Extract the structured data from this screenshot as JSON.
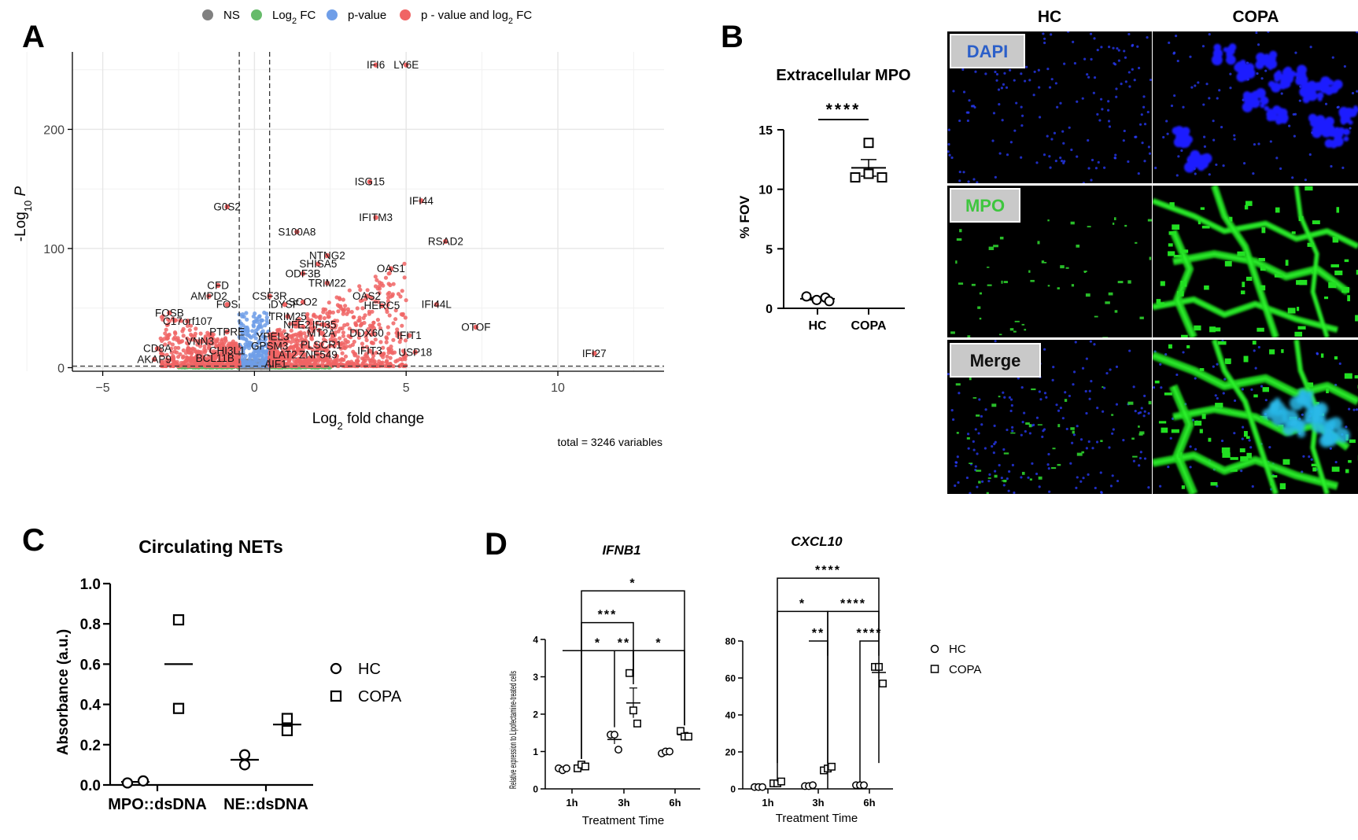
{
  "panel_letters": [
    "A",
    "B",
    "C",
    "D"
  ],
  "chart_data": [
    {
      "id": "A",
      "type": "scatter",
      "title": "",
      "xlabel": "Log2 fold change",
      "ylabel": "-Log10 P",
      "xlim": [
        -6,
        13.5
      ],
      "ylim": [
        -3,
        265
      ],
      "xticks": [
        -5,
        0,
        5,
        10
      ],
      "yticks": [
        0,
        100,
        200
      ],
      "grid": true,
      "legend_position": "top",
      "legend": [
        {
          "name": "NS",
          "color": "#808080"
        },
        {
          "name": "Log2 FC",
          "color": "#66bb6a"
        },
        {
          "name": "p-value",
          "color": "#6f9ee8"
        },
        {
          "name": "p - value and log2 FC",
          "color": "#f06464"
        }
      ],
      "thresholds": {
        "log2fc": [
          -0.5,
          0.5
        ],
        "neglog10p": 1.3
      },
      "caption": "total = 3246 variables",
      "labeled_points": [
        {
          "label": "IFI6",
          "x": 4.0,
          "y": 254
        },
        {
          "label": "LY6E",
          "x": 5.0,
          "y": 254
        },
        {
          "label": "ISG15",
          "x": 3.8,
          "y": 156
        },
        {
          "label": "IFI44",
          "x": 5.5,
          "y": 140
        },
        {
          "label": "IFITM3",
          "x": 4.0,
          "y": 126
        },
        {
          "label": "G0S2",
          "x": -0.9,
          "y": 135
        },
        {
          "label": "S100A8",
          "x": 1.4,
          "y": 114
        },
        {
          "label": "RSAD2",
          "x": 6.3,
          "y": 106
        },
        {
          "label": "NTNG2",
          "x": 2.4,
          "y": 94
        },
        {
          "label": "SHISA5",
          "x": 2.1,
          "y": 87
        },
        {
          "label": "OAS1",
          "x": 4.5,
          "y": 83
        },
        {
          "label": "ODF3B",
          "x": 1.6,
          "y": 79
        },
        {
          "label": "TRIM22",
          "x": 2.4,
          "y": 71
        },
        {
          "label": "CFD",
          "x": -1.2,
          "y": 69
        },
        {
          "label": "AMPD2",
          "x": -1.5,
          "y": 60
        },
        {
          "label": "CSF3R",
          "x": 0.5,
          "y": 60
        },
        {
          "label": "OAS2",
          "x": 3.7,
          "y": 60
        },
        {
          "label": "SCO2",
          "x": 1.6,
          "y": 55
        },
        {
          "label": "FOS",
          "x": -0.9,
          "y": 53
        },
        {
          "label": "DYSF",
          "x": 1.0,
          "y": 53
        },
        {
          "label": "HERC5",
          "x": 4.2,
          "y": 52
        },
        {
          "label": "IFI44L",
          "x": 6.0,
          "y": 53
        },
        {
          "label": "FOSB",
          "x": -2.8,
          "y": 46
        },
        {
          "label": "TRIM25",
          "x": 1.1,
          "y": 43
        },
        {
          "label": "C17orf107",
          "x": -2.2,
          "y": 39
        },
        {
          "label": "NFE2",
          "x": 1.4,
          "y": 36
        },
        {
          "label": "IFI35",
          "x": 2.3,
          "y": 36
        },
        {
          "label": "OTOF",
          "x": 7.3,
          "y": 34
        },
        {
          "label": "PTPRE",
          "x": -0.9,
          "y": 30
        },
        {
          "label": "MT2A",
          "x": 2.2,
          "y": 29
        },
        {
          "label": "DDX60",
          "x": 3.7,
          "y": 29
        },
        {
          "label": "YPEL3",
          "x": 0.6,
          "y": 26
        },
        {
          "label": "IFIT1",
          "x": 5.1,
          "y": 27
        },
        {
          "label": "VNN3",
          "x": -1.8,
          "y": 22
        },
        {
          "label": "GPSM3",
          "x": 0.5,
          "y": 18
        },
        {
          "label": "PLSCR1",
          "x": 2.2,
          "y": 19
        },
        {
          "label": "CD8A",
          "x": -3.2,
          "y": 16
        },
        {
          "label": "CHI3L1",
          "x": -0.9,
          "y": 14
        },
        {
          "label": "IFIT3",
          "x": 3.8,
          "y": 14
        },
        {
          "label": "USP18",
          "x": 5.3,
          "y": 13
        },
        {
          "label": "IFI27",
          "x": 11.2,
          "y": 12
        },
        {
          "label": "LAT2",
          "x": 1.0,
          "y": 11
        },
        {
          "label": "ZNF549",
          "x": 2.1,
          "y": 11
        },
        {
          "label": "AKAP9",
          "x": -3.3,
          "y": 7
        },
        {
          "label": "BCL11B",
          "x": -1.3,
          "y": 8
        },
        {
          "label": "AIF1",
          "x": 0.7,
          "y": 3
        }
      ]
    },
    {
      "id": "B",
      "type": "scatter",
      "title": "Extracellular MPO",
      "ylabel": "% FOV",
      "categories": [
        "HC",
        "COPA"
      ],
      "ylim": [
        0,
        15
      ],
      "yticks": [
        0,
        5,
        10,
        15
      ],
      "series": [
        {
          "name": "HC",
          "marker": "circle",
          "values": [
            1.0,
            0.7,
            0.9,
            0.6
          ],
          "mean": 0.8,
          "sem": 0.1
        },
        {
          "name": "COPA",
          "marker": "square",
          "values": [
            13.9,
            11.0,
            11.3,
            11.0
          ],
          "mean": 11.8,
          "sem": 0.7
        }
      ],
      "significance": [
        {
          "between": [
            "HC",
            "COPA"
          ],
          "label": "****"
        }
      ]
    },
    {
      "id": "C",
      "type": "scatter",
      "title": "Circulating NETs",
      "ylabel": "Absorbance (a.u.)",
      "categories": [
        "MPO::dsDNA",
        "NE::dsDNA"
      ],
      "ylim": [
        0,
        1.0
      ],
      "yticks": [
        0.0,
        0.2,
        0.4,
        0.6,
        0.8,
        1.0
      ],
      "legend_position": "right",
      "series": [
        {
          "name": "HC",
          "marker": "circle",
          "values": [
            [
              0.01,
              0.02
            ],
            [
              0.15,
              0.1
            ]
          ],
          "means": [
            0.015,
            0.125
          ]
        },
        {
          "name": "COPA",
          "marker": "square",
          "values": [
            [
              0.82,
              0.38
            ],
            [
              0.33,
              0.27
            ]
          ],
          "means": [
            0.6,
            0.3
          ]
        }
      ]
    },
    {
      "id": "D1",
      "type": "scatter",
      "title": "IFNB1",
      "xlabel": "Treatment Time",
      "ylabel": "Relative expression to Lipofectamine-treated cells",
      "categories": [
        "1h",
        "3h",
        "6h"
      ],
      "ylim": [
        0,
        4
      ],
      "yticks": [
        0,
        1,
        2,
        3,
        4
      ],
      "series": [
        {
          "name": "HC",
          "marker": "circle",
          "values": [
            [
              0.55,
              0.5,
              0.55
            ],
            [
              1.45,
              1.45,
              1.05
            ],
            [
              0.95,
              1.0,
              1.0
            ]
          ],
          "means": [
            0.53,
            1.32,
            0.98
          ]
        },
        {
          "name": "COPA",
          "marker": "square",
          "values": [
            [
              0.55,
              0.65,
              0.6
            ],
            [
              3.1,
              2.1,
              1.75
            ],
            [
              1.55,
              1.4,
              1.4
            ]
          ],
          "means": [
            0.6,
            2.3,
            1.45
          ]
        }
      ],
      "significance": [
        {
          "label": "*",
          "from": [
            0,
            "HC"
          ],
          "to": [
            1,
            "COPA"
          ],
          "level": 3.7
        },
        {
          "label": "**",
          "from": [
            1,
            "HC"
          ],
          "to": [
            1,
            "COPA"
          ],
          "level": 3.7
        },
        {
          "label": "*",
          "from": [
            1,
            "COPA"
          ],
          "to": [
            2,
            "COPA"
          ],
          "level": 3.7
        },
        {
          "label": "***",
          "from": [
            0,
            "COPA"
          ],
          "to": [
            1,
            "COPA"
          ],
          "level": 4.45
        },
        {
          "label": "*",
          "from": [
            0,
            "COPA"
          ],
          "to": [
            2,
            "COPA"
          ],
          "level": 5.3
        }
      ]
    },
    {
      "id": "D2",
      "type": "scatter",
      "title": "CXCL10",
      "xlabel": "Treatment Time",
      "categories": [
        "1h",
        "3h",
        "6h"
      ],
      "ylim": [
        0,
        80
      ],
      "yticks": [
        0,
        20,
        40,
        60,
        80
      ],
      "legend_position": "right",
      "series": [
        {
          "name": "HC",
          "marker": "circle",
          "values": [
            [
              1,
              1,
              1
            ],
            [
              1.5,
              1.5,
              2
            ],
            [
              2,
              2,
              2
            ]
          ],
          "means": [
            1,
            1.7,
            2
          ]
        },
        {
          "name": "COPA",
          "marker": "square",
          "values": [
            [
              3,
              3,
              4
            ],
            [
              10,
              11,
              12
            ],
            [
              66,
              66,
              57
            ]
          ],
          "means": [
            3.3,
            11,
            63
          ]
        }
      ],
      "significance": [
        {
          "label": "**",
          "from": [
            1,
            "HC"
          ],
          "to": [
            1,
            "COPA"
          ],
          "level": 80
        },
        {
          "label": "****",
          "from": [
            2,
            "HC"
          ],
          "to": [
            2,
            "COPA"
          ],
          "level": 80
        },
        {
          "label": "*",
          "from": [
            0,
            "COPA"
          ],
          "to": [
            1,
            "COPA"
          ],
          "level": 96
        },
        {
          "label": "****",
          "from": [
            1,
            "COPA"
          ],
          "to": [
            2,
            "COPA"
          ],
          "level": 96
        },
        {
          "label": "****",
          "from": [
            0,
            "COPA"
          ],
          "to": [
            2,
            "COPA"
          ],
          "level": 114
        }
      ]
    }
  ],
  "micrographs": {
    "column_labels": [
      "HC",
      "COPA"
    ],
    "row_labels": [
      {
        "label": "DAPI",
        "color": "#2b5fc9"
      },
      {
        "label": "MPO",
        "color": "#3ec63e"
      },
      {
        "label": "Merge",
        "color": "#111111"
      }
    ]
  }
}
